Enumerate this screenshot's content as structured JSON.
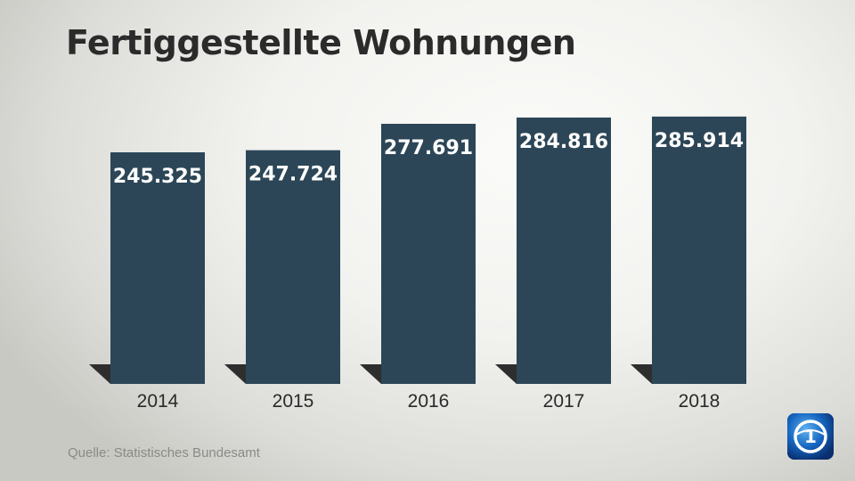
{
  "title": "Fertiggestellte Wohnungen",
  "source": "Quelle: Statistisches Bundesamt",
  "colors": {
    "bar": "#2c4657",
    "shadow": "#2e2e2e",
    "logo": "#1565c0"
  },
  "chart_data": {
    "type": "bar",
    "title": "Fertiggestellte Wohnungen",
    "categories": [
      "2014",
      "2015",
      "2016",
      "2017",
      "2018"
    ],
    "values": [
      245325,
      247724,
      277691,
      284816,
      285914
    ],
    "value_labels": [
      "245.325",
      "247.724",
      "277.691",
      "284.816",
      "285.914"
    ],
    "xlabel": "",
    "ylabel": "",
    "grid": false,
    "legend": "none"
  }
}
